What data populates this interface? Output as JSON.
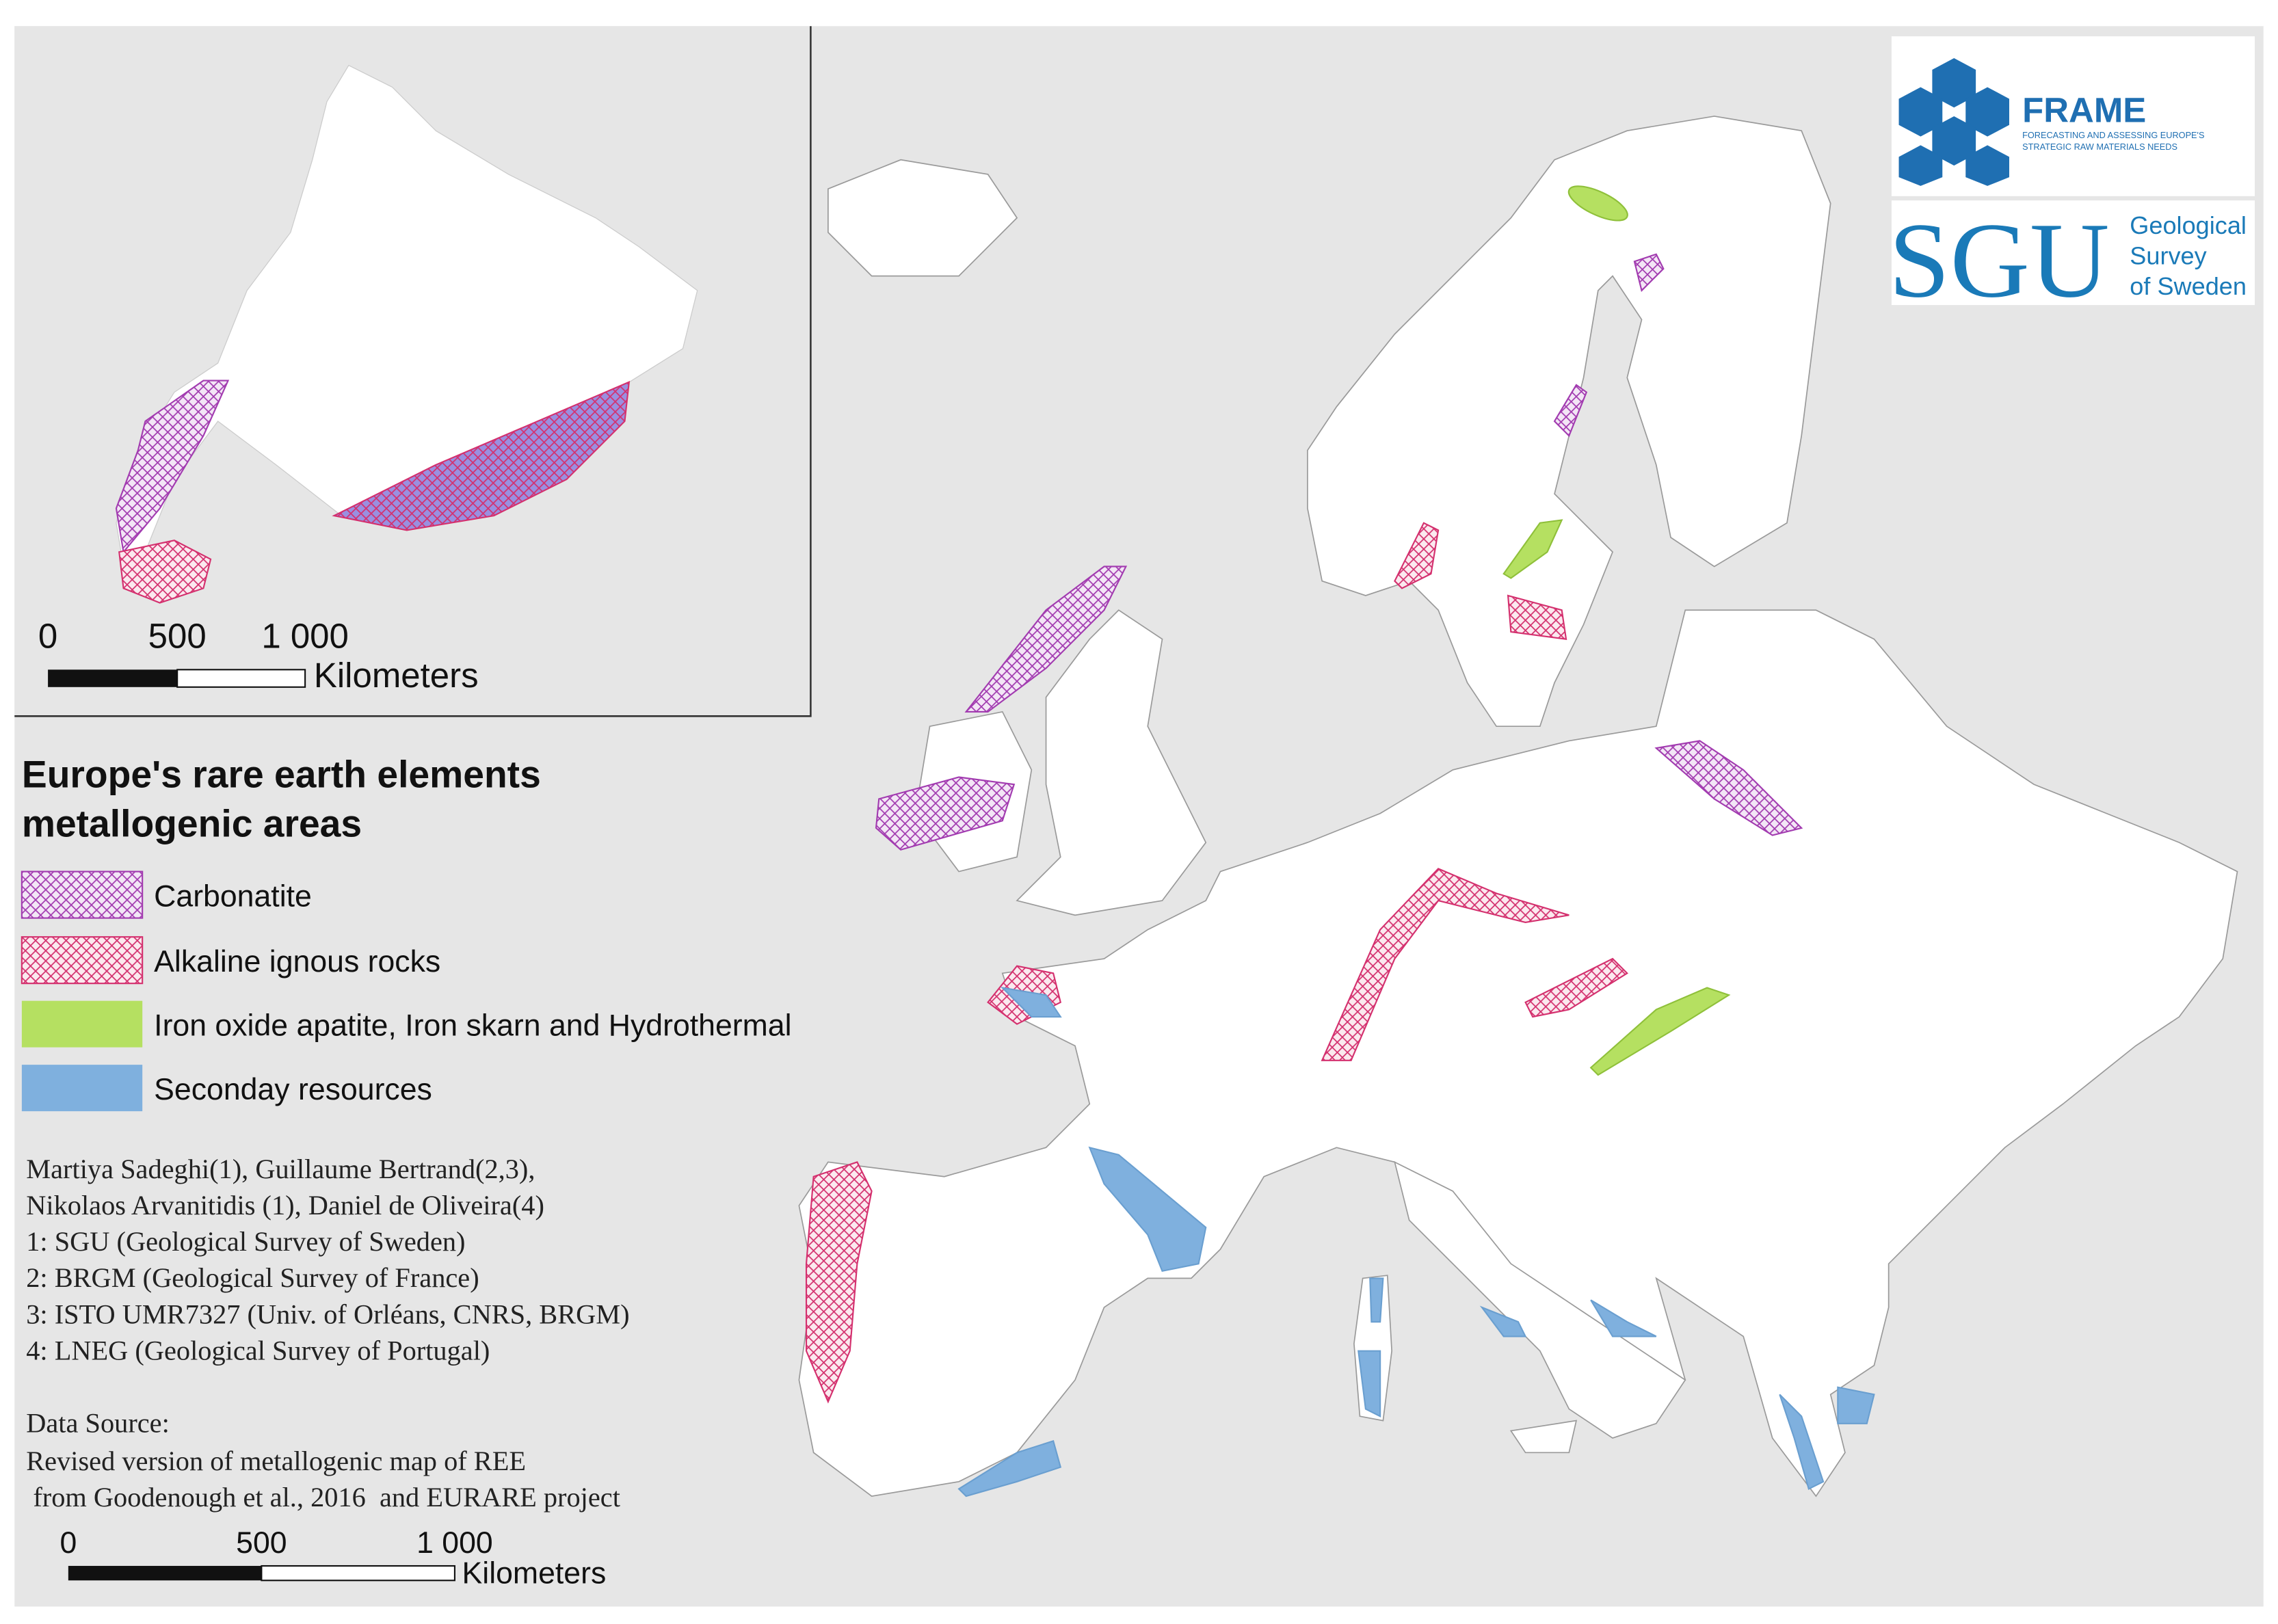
{
  "inset": {
    "scale_bar": {
      "ticks": [
        "0",
        "500",
        "1 000"
      ],
      "unit": "Kilometers"
    }
  },
  "legend": {
    "title": [
      "Europe's rare earth elements",
      "metallogenic areas"
    ],
    "items": [
      {
        "label": "Carbonatite"
      },
      {
        "label": "Alkaline ignous rocks"
      },
      {
        "label": "Iron oxide apatite, Iron skarn and Hydrothermal"
      },
      {
        "label": "Seconday resources"
      }
    ]
  },
  "credits": {
    "authors": [
      "Martiya Sadeghi(1), Guillaume Bertrand(2,3),",
      "Nikolaos Arvanitidis (1), Daniel de Oliveira(4)",
      "1: SGU (Geological Survey of Sweden)",
      "2: BRGM (Geological Survey of France)",
      "3: ISTO UMR7327 (Univ. of Orléans, CNRS, BRGM)",
      "4: LNEG (Geological Survey of Portugal)"
    ],
    "data_source": [
      "Data Source:",
      "Revised version of metallogenic map of REE",
      " from Goodenough et al., 2016  and EURARE project"
    ]
  },
  "scale_bar": {
    "ticks": [
      "0",
      "500",
      "1 000"
    ],
    "unit": "Kilometers"
  },
  "logos": {
    "frame": {
      "name": "FRAME",
      "tagline": [
        "FORECASTING AND ASSESSING EUROPE'S",
        "STRATEGIC RAW MATERIALS NEEDS"
      ]
    },
    "sgu": {
      "name": "SGU",
      "tagline": [
        "Geological",
        "Survey",
        "of Sweden"
      ]
    }
  }
}
